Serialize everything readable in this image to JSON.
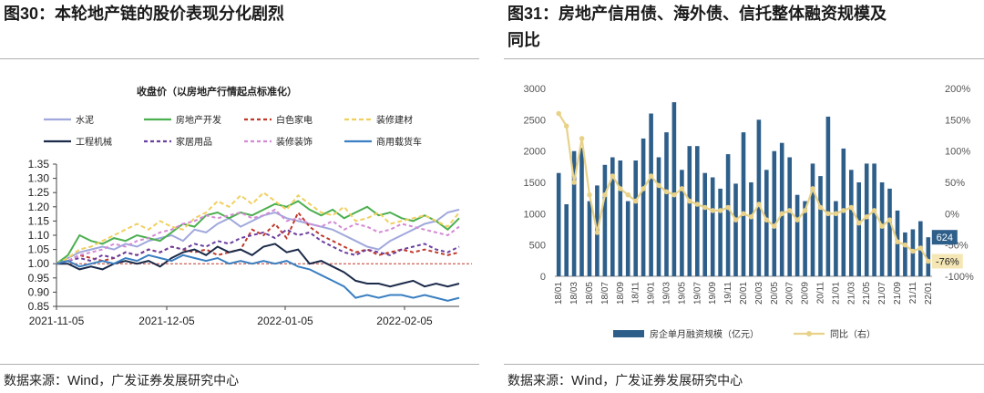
{
  "left": {
    "fig_label": "图30",
    "fig_title": "本轮地产链的股价表现分化剧烈",
    "source_prefix": "数据来源：",
    "source_en": "Wind",
    "source_suffix": "，广发证券发展研究中心",
    "chart_data": {
      "type": "line",
      "title": "收盘价（以房地产行情起点标准化）",
      "ylim": [
        0.85,
        1.35
      ],
      "yticks": [
        "1.35",
        "1.30",
        "1.25",
        "1.20",
        "1.15",
        "1.10",
        "1.05",
        "1.00",
        "0.95",
        "0.90",
        "0.85"
      ],
      "xticks": [
        "2021-11-05",
        "2021-12-05",
        "2022-01-05",
        "2022-02-05"
      ],
      "reference_line": 1.0,
      "series": [
        {
          "name": "水泥",
          "color": "#a0a8dc",
          "dash": "",
          "values": [
            1.0,
            1.02,
            1.04,
            1.05,
            1.06,
            1.05,
            1.07,
            1.06,
            1.08,
            1.09,
            1.1,
            1.08,
            1.12,
            1.11,
            1.14,
            1.16,
            1.13,
            1.15,
            1.17,
            1.18,
            1.16,
            1.15,
            1.14,
            1.13,
            1.12,
            1.1,
            1.08,
            1.06,
            1.05,
            1.08,
            1.1,
            1.12,
            1.14,
            1.15,
            1.18,
            1.19
          ]
        },
        {
          "name": "房地产开发",
          "color": "#4caf50",
          "dash": "",
          "values": [
            1.0,
            1.03,
            1.1,
            1.08,
            1.07,
            1.09,
            1.08,
            1.1,
            1.09,
            1.08,
            1.11,
            1.14,
            1.13,
            1.17,
            1.18,
            1.16,
            1.18,
            1.17,
            1.19,
            1.21,
            1.2,
            1.22,
            1.19,
            1.17,
            1.19,
            1.16,
            1.18,
            1.2,
            1.17,
            1.18,
            1.16,
            1.15,
            1.17,
            1.15,
            1.12,
            1.16
          ]
        },
        {
          "name": "白色家电",
          "color": "#c0392b",
          "dash": "4,3",
          "values": [
            1.0,
            1.01,
            1.03,
            1.02,
            1.01,
            1.02,
            1.04,
            1.03,
            1.05,
            1.04,
            1.06,
            1.05,
            1.04,
            1.05,
            1.03,
            1.04,
            1.05,
            1.12,
            1.1,
            1.14,
            1.09,
            1.18,
            1.13,
            1.1,
            1.08,
            1.06,
            1.04,
            1.05,
            1.03,
            1.04,
            1.05,
            1.04,
            1.05,
            1.04,
            1.03,
            1.04
          ]
        },
        {
          "name": "装修建材",
          "color": "#f0d060",
          "dash": "5,3",
          "values": [
            1.0,
            1.02,
            1.05,
            1.06,
            1.08,
            1.1,
            1.12,
            1.14,
            1.12,
            1.15,
            1.13,
            1.12,
            1.16,
            1.18,
            1.22,
            1.2,
            1.24,
            1.21,
            1.25,
            1.22,
            1.19,
            1.24,
            1.21,
            1.18,
            1.17,
            1.2,
            1.15,
            1.16,
            1.18,
            1.14,
            1.15,
            1.16,
            1.17,
            1.15,
            1.13,
            1.18
          ]
        },
        {
          "name": "工程机械",
          "color": "#1c2b4a",
          "dash": "",
          "values": [
            1.0,
            1.0,
            0.98,
            0.99,
            0.98,
            1.0,
            1.01,
            1.0,
            1.01,
            0.99,
            1.02,
            1.04,
            1.05,
            1.03,
            1.06,
            1.04,
            1.05,
            1.03,
            1.06,
            1.07,
            1.04,
            1.05,
            1.0,
            1.01,
            0.99,
            0.97,
            0.94,
            0.93,
            0.93,
            0.92,
            0.93,
            0.94,
            0.92,
            0.93,
            0.92,
            0.93
          ]
        },
        {
          "name": "家居用品",
          "color": "#6b3fa0",
          "dash": "4,3",
          "values": [
            1.0,
            1.01,
            1.02,
            1.01,
            1.03,
            1.02,
            1.04,
            1.03,
            1.05,
            1.04,
            1.06,
            1.05,
            1.07,
            1.06,
            1.08,
            1.07,
            1.09,
            1.1,
            1.11,
            1.09,
            1.12,
            1.1,
            1.11,
            1.08,
            1.06,
            1.04,
            1.03,
            1.05,
            1.04,
            1.03,
            1.05,
            1.06,
            1.07,
            1.05,
            1.04,
            1.06
          ]
        },
        {
          "name": "装修装饰",
          "color": "#d48ad4",
          "dash": "4,3",
          "values": [
            1.0,
            1.01,
            1.03,
            1.04,
            1.05,
            1.07,
            1.06,
            1.08,
            1.09,
            1.11,
            1.12,
            1.14,
            1.15,
            1.17,
            1.16,
            1.17,
            1.18,
            1.16,
            1.17,
            1.19,
            1.15,
            1.16,
            1.14,
            1.13,
            1.15,
            1.12,
            1.14,
            1.13,
            1.11,
            1.12,
            1.14,
            1.13,
            1.12,
            1.11,
            1.1,
            1.13
          ]
        },
        {
          "name": "商用载货车",
          "color": "#3a7fc1",
          "dash": "",
          "values": [
            1.0,
            1.01,
            0.99,
            1.0,
            1.01,
            1.0,
            1.02,
            1.01,
            1.03,
            1.02,
            1.01,
            1.03,
            1.02,
            1.01,
            1.02,
            1.0,
            1.01,
            1.0,
            1.01,
            1.0,
            1.01,
            0.99,
            0.98,
            0.96,
            0.94,
            0.92,
            0.88,
            0.89,
            0.88,
            0.89,
            0.89,
            0.88,
            0.89,
            0.88,
            0.87,
            0.88
          ]
        }
      ]
    }
  },
  "right": {
    "fig_label": "图31",
    "fig_title_line1": "房地产信用债、海外债、信托整体融资规模及",
    "fig_title_line2": "同比",
    "source_prefix": "数据来源：",
    "source_en": "Wind",
    "source_suffix": "，广发证券发展研究中心",
    "chart_data": {
      "type": "bar+line",
      "categories": [
        "18/01",
        "18/02",
        "18/03",
        "18/04",
        "18/05",
        "18/06",
        "18/07",
        "18/08",
        "18/09",
        "18/10",
        "18/11",
        "18/12",
        "19/01",
        "19/02",
        "19/03",
        "19/04",
        "19/05",
        "19/06",
        "19/07",
        "19/08",
        "19/09",
        "19/10",
        "19/11",
        "19/12",
        "20/01",
        "20/02",
        "20/03",
        "20/04",
        "20/05",
        "20/06",
        "20/07",
        "20/08",
        "20/09",
        "20/10",
        "20/11",
        "20/12",
        "21/01",
        "21/02",
        "21/03",
        "21/04",
        "21/05",
        "21/06",
        "21/07",
        "21/08",
        "21/09",
        "21/10",
        "21/11",
        "21/12",
        "22/01"
      ],
      "xtick_labels": [
        "18/01",
        "18/03",
        "18/05",
        "18/07",
        "18/09",
        "18/11",
        "19/01",
        "19/03",
        "19/05",
        "19/07",
        "19/09",
        "19/11",
        "20/01",
        "20/03",
        "20/05",
        "20/07",
        "20/09",
        "20/11",
        "21/01",
        "21/03",
        "21/05",
        "21/07",
        "21/09",
        "21/11",
        "22/01"
      ],
      "bar_series": {
        "name": "房企单月融资规模（亿元）",
        "color": "#2e5f8a",
        "values": [
          1650,
          1150,
          2000,
          2050,
          1200,
          1450,
          1780,
          1900,
          1850,
          1200,
          1850,
          2200,
          2600,
          1900,
          2300,
          2780,
          1700,
          2080,
          2080,
          1650,
          1580,
          1400,
          1950,
          1480,
          2300,
          1500,
          2500,
          1700,
          2000,
          2130,
          1900,
          1300,
          1200,
          1800,
          1600,
          2550,
          1200,
          2040,
          1700,
          1500,
          1800,
          1800,
          1500,
          1400,
          1050,
          700,
          750,
          880,
          624
        ]
      },
      "line_series": {
        "name": "同比（右）",
        "color": "#e8d28a",
        "values": [
          160,
          140,
          50,
          120,
          30,
          -30,
          30,
          60,
          40,
          30,
          20,
          40,
          60,
          45,
          35,
          30,
          40,
          20,
          15,
          10,
          5,
          5,
          10,
          -10,
          0,
          -5,
          15,
          -10,
          -20,
          0,
          5,
          -10,
          5,
          40,
          10,
          0,
          0,
          5,
          10,
          -15,
          -5,
          5,
          -20,
          -10,
          -45,
          -50,
          -60,
          -55,
          -76
        ]
      },
      "y_left": {
        "lim": [
          0,
          3000
        ],
        "ticks": [
          "3000",
          "2500",
          "2000",
          "1500",
          "1000",
          "500",
          "0"
        ]
      },
      "y_right": {
        "lim": [
          -100,
          200
        ],
        "ticks": [
          "200%",
          "150%",
          "100%",
          "50%",
          "0%",
          "-50%",
          "-100%"
        ]
      },
      "callout_bar": "624",
      "callout_line": "-76%"
    }
  }
}
